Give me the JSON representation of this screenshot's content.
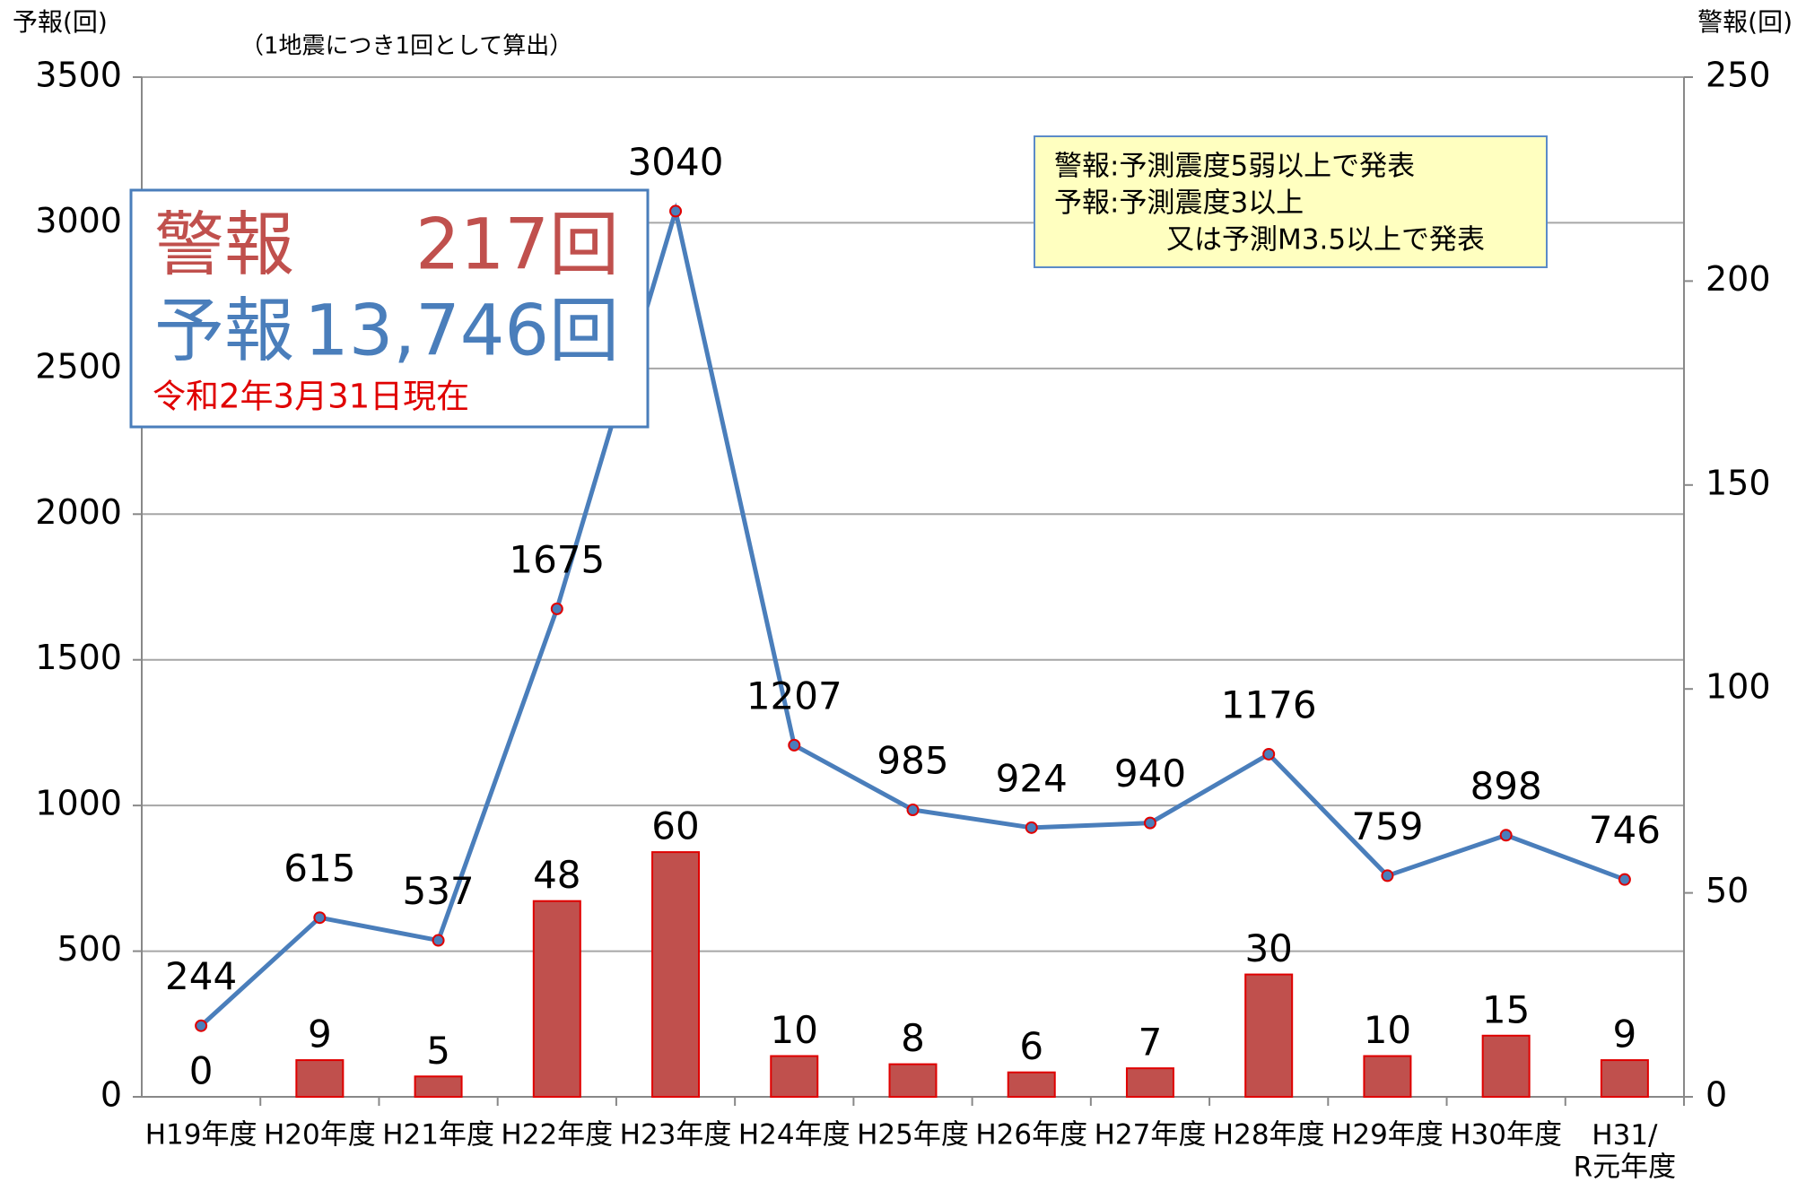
{
  "chart_data": {
    "type": "combo",
    "subtitle": "（1地震につき1回として算出）",
    "y_label": "予報(回)",
    "y2_label": "警報(回)",
    "categories": [
      "H19年度",
      "H20年度",
      "H21年度",
      "H22年度",
      "H23年度",
      "H24年度",
      "H25年度",
      "H26年度",
      "H27年度",
      "H28年度",
      "H29年度",
      "H30年度",
      "H31/\nR元年度"
    ],
    "series": [
      {
        "name": "警報",
        "type": "bar",
        "axis": "y2",
        "color": "#c0504d",
        "values": [
          0,
          9,
          5,
          48,
          60,
          10,
          8,
          6,
          7,
          30,
          10,
          15,
          9
        ]
      },
      {
        "name": "予報",
        "type": "line",
        "axis": "y",
        "color": "#4a7ebb",
        "values": [
          244,
          615,
          537,
          1675,
          3040,
          1207,
          985,
          924,
          940,
          1176,
          759,
          898,
          746
        ]
      }
    ],
    "ylim": [
      0,
      3500
    ],
    "yticks": [
      0,
      500,
      1000,
      1500,
      2000,
      2500,
      3000,
      3500
    ],
    "y2lim": [
      0,
      250
    ],
    "y2ticks": [
      0,
      50,
      100,
      150,
      200,
      250
    ],
    "grid": true,
    "summary": {
      "warning_total": "217回",
      "forecast_total": "13,746回",
      "date": "令和2年3月31日現在"
    },
    "note": [
      "警報:予測震度5弱以上で発表",
      "予報:予測震度3以上",
      "又は予測M3.5以上で発表"
    ]
  }
}
